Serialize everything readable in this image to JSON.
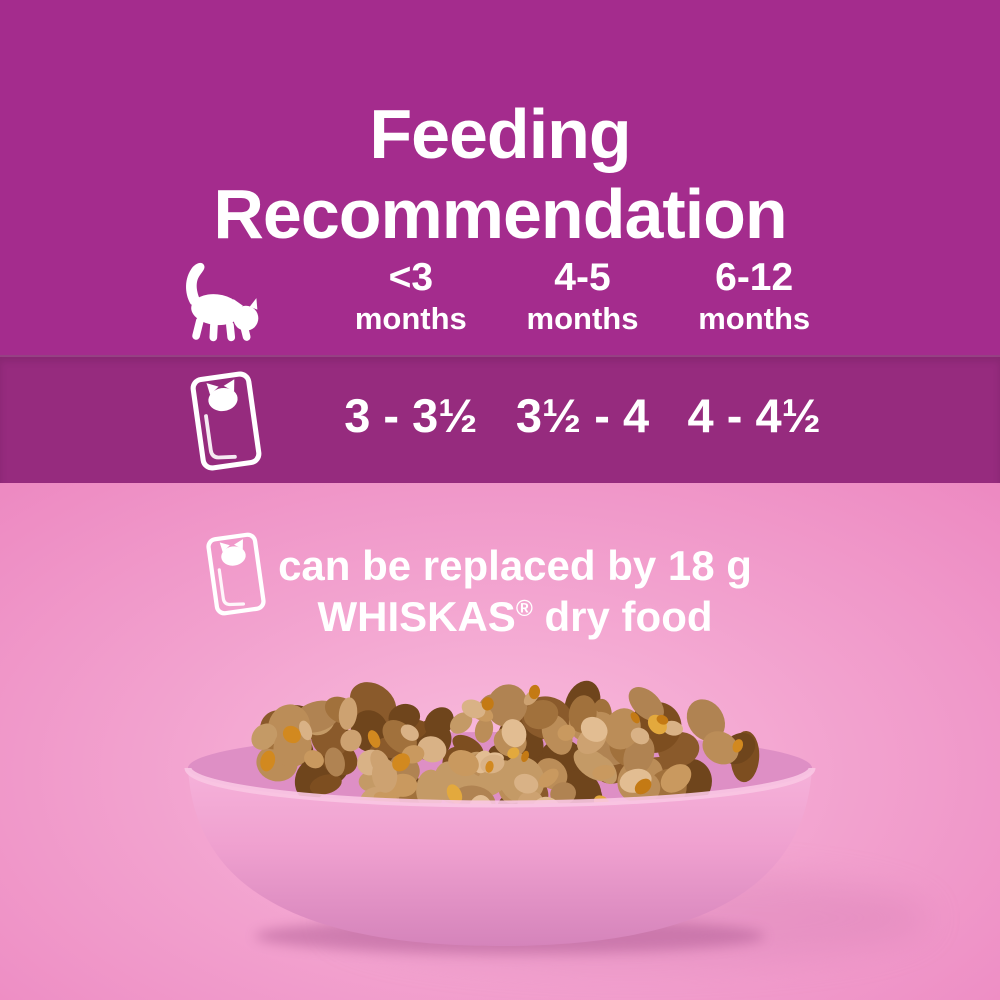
{
  "title": {
    "line1": "Feeding",
    "line2": "Recommendation"
  },
  "table": {
    "header_icon": "kitten-icon",
    "row_icon": "pouch-icon",
    "age_columns": [
      {
        "range": "<3",
        "unit": "months"
      },
      {
        "range": "4-5",
        "unit": "months"
      },
      {
        "range": "6-12",
        "unit": "months"
      }
    ],
    "pouches_per_day": [
      "3 - 3½",
      "3½ - 4",
      "4 - 4½"
    ]
  },
  "note": {
    "icon": "pouch-icon",
    "line1": "can be replaced by 18 g",
    "brand": "WHISKAS",
    "trademark": "®",
    "line2_rest": " dry food"
  },
  "colors": {
    "top_background": "#A42C8D",
    "band_background": "#962B7E",
    "pink_background": "#EC86C0",
    "text": "#FFFFFF",
    "bowl_pink": "#F0A5D1",
    "food_brown": "#B08352",
    "gravy_orange": "#D2891F"
  },
  "chart_data": {
    "type": "table",
    "title": "Feeding Recommendation",
    "columns": [
      "<3 months",
      "4-5 months",
      "6-12 months"
    ],
    "rows": [
      {
        "label_icon": "pouch-icon",
        "values": [
          "3 - 3½",
          "3½ - 4",
          "4 - 4½"
        ]
      }
    ],
    "footnote": "can be replaced by 18 g WHISKAS® dry food"
  }
}
